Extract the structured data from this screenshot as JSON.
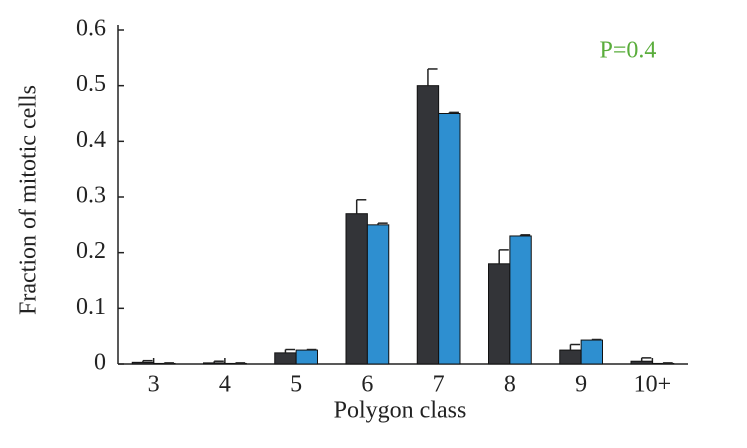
{
  "chart_data": {
    "type": "bar",
    "categories": [
      "3",
      "4",
      "5",
      "6",
      "7",
      "8",
      "9",
      "10+"
    ],
    "series": [
      {
        "color": "#333438",
        "values": [
          0.003,
          0.002,
          0.02,
          0.27,
          0.5,
          0.18,
          0.025,
          0.005
        ],
        "errors": [
          0.003,
          0.003,
          0.006,
          0.025,
          0.03,
          0.025,
          0.01,
          0.006
        ]
      },
      {
        "color": "#2e8fd0",
        "values": [
          0.001,
          0.001,
          0.025,
          0.25,
          0.45,
          0.23,
          0.043,
          0.001
        ],
        "errors": [
          0.001,
          0.001,
          0.001,
          0.003,
          0.002,
          0.002,
          0.001,
          0.001
        ]
      }
    ],
    "xlabel": "Polygon class",
    "ylabel": "Fraction of mitotic cells",
    "annotation": "P=0.4",
    "annotation_color": "#5aad3c",
    "ylim": [
      0,
      0.6
    ],
    "yticks": [
      0,
      0.1,
      0.2,
      0.3,
      0.4,
      0.5,
      0.6
    ],
    "grid": false
  }
}
